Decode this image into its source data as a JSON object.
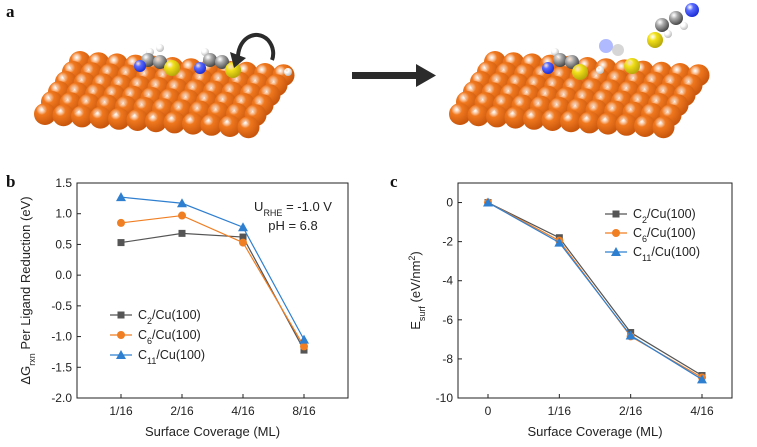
{
  "panels": {
    "a": "a",
    "b": "b",
    "c": "c"
  },
  "colors": {
    "copper": "#f0781e",
    "copper_dark": "#c8560c",
    "sulfur": "#f2e11a",
    "nitrogen": "#1d2fd6",
    "carbon": "#7a7a7a",
    "hydrogen": "#ffffff",
    "arrow": "#2b2b2b",
    "series": [
      "#555555",
      "#f07e22",
      "#2f7fd0"
    ]
  },
  "icons": {
    "surface_initial": "cu100-slab-with-adsorbed-ligands",
    "surface_final": "cu100-slab-with-desorbed-ligand",
    "reaction_arrow": "right-arrow-icon",
    "rotation_arrow": "curved-arrow-icon"
  },
  "chart_data": [
    {
      "type": "line",
      "panel": "b",
      "categories": [
        "1/16",
        "2/16",
        "4/16",
        "8/16"
      ],
      "series": [
        {
          "name": "C2/Cu(100)",
          "marker": "square",
          "values": [
            0.53,
            0.68,
            0.62,
            -1.22
          ]
        },
        {
          "name": "C6/Cu(100)",
          "marker": "circle",
          "values": [
            0.85,
            0.97,
            0.53,
            -1.16
          ]
        },
        {
          "name": "C11/Cu(100)",
          "marker": "triangle",
          "values": [
            1.27,
            1.17,
            0.78,
            -1.05
          ]
        }
      ],
      "legend": [
        {
          "base": "C",
          "sub": "2",
          "rest": "/Cu(100)"
        },
        {
          "base": "C",
          "sub": "6",
          "rest": "/Cu(100)"
        },
        {
          "base": "C",
          "sub": "11",
          "rest": "/Cu(100)"
        }
      ],
      "xlabel": "Surface Coverage (ML)",
      "ylabel": {
        "pre": "ΔG",
        "sub": "rxn",
        "post": " Per Ligand Reduction (eV)"
      },
      "ylim": [
        -2.0,
        1.5
      ],
      "yticks": [
        "1.5",
        "1.0",
        "0.5",
        "0.0",
        "-0.5",
        "-1.0",
        "-1.5",
        "-2.0"
      ],
      "annotation": {
        "line1": {
          "pre": "U",
          "sub": "RHE",
          "post": " = -1.0 V"
        },
        "line2": "pH = 6.8"
      },
      "grid": false,
      "legend_position": "bottom-left"
    },
    {
      "type": "line",
      "panel": "c",
      "categories": [
        "0",
        "1/16",
        "2/16",
        "4/16"
      ],
      "series": [
        {
          "name": "C2/Cu(100)",
          "marker": "square",
          "values": [
            0.0,
            -1.8,
            -6.65,
            -8.85
          ]
        },
        {
          "name": "C6/Cu(100)",
          "marker": "circle",
          "values": [
            0.0,
            -1.95,
            -6.85,
            -8.95
          ]
        },
        {
          "name": "C11/Cu(100)",
          "marker": "triangle",
          "values": [
            0.0,
            -2.05,
            -6.8,
            -9.05
          ]
        }
      ],
      "legend": [
        {
          "base": "C",
          "sub": "2",
          "rest": "/Cu(100)"
        },
        {
          "base": "C",
          "sub": "6",
          "rest": "/Cu(100)"
        },
        {
          "base": "C",
          "sub": "11",
          "rest": "/Cu(100)"
        }
      ],
      "xlabel": "Surface Coverage (ML)",
      "ylabel": {
        "pre": "E",
        "sub": "surf",
        "mid": " (eV/nm",
        "sup": "2",
        "post": ")"
      },
      "ylim": [
        -10,
        1
      ],
      "yticks": [
        "0",
        "-2",
        "-4",
        "-6",
        "-8",
        "-10"
      ],
      "grid": false,
      "legend_position": "top-right"
    }
  ]
}
